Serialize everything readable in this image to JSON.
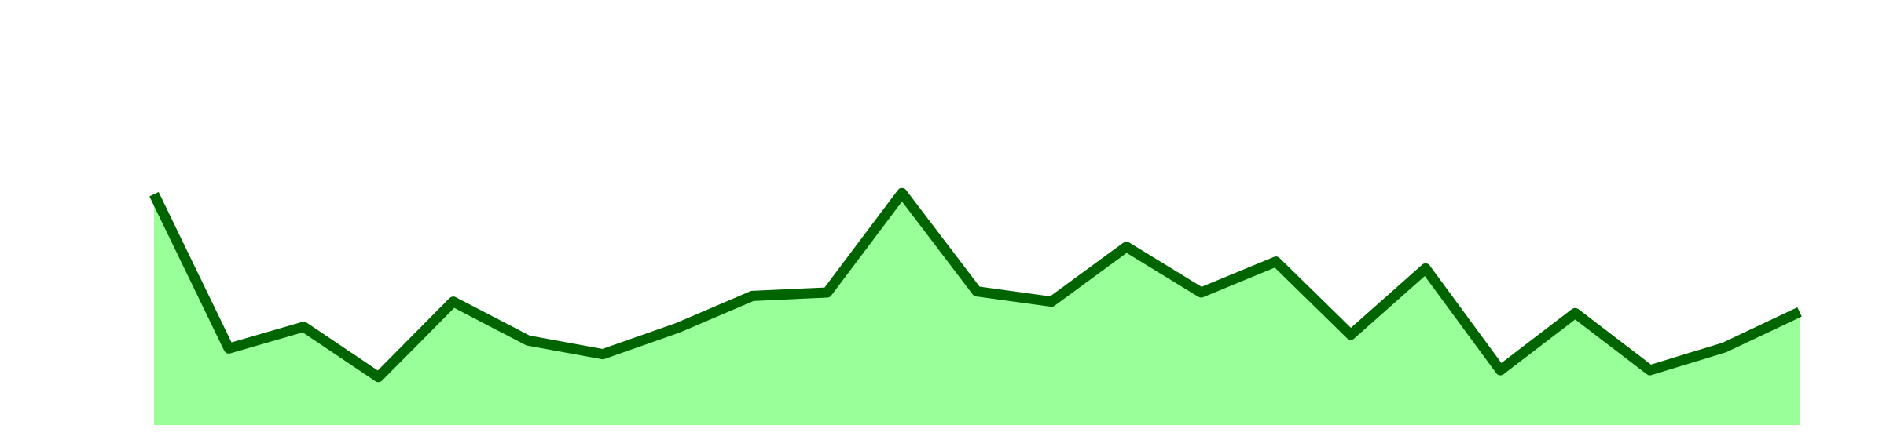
{
  "chart_data": {
    "type": "area",
    "values": [
      101,
      33.5,
      43,
      21,
      54,
      37,
      31,
      42.5,
      56.5,
      58,
      101.5,
      58.5,
      54,
      78,
      58,
      71.5,
      39.5,
      68.5,
      24,
      49,
      24,
      34,
      49.5
    ],
    "color": "#006400",
    "fill": "#99ff99",
    "ylim": [
      0,
      186
    ],
    "grid": false
  }
}
